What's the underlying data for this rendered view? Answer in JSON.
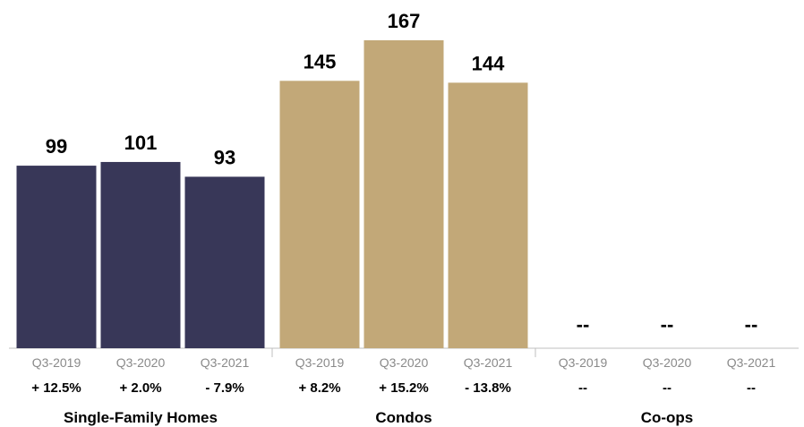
{
  "chart_data": {
    "type": "bar",
    "groups": [
      {
        "name": "Single-Family Homes",
        "color": "#383758",
        "bars": [
          {
            "period": "Q3-2019",
            "value": 99,
            "label": "99",
            "change": "+ 12.5%"
          },
          {
            "period": "Q3-2020",
            "value": 101,
            "label": "101",
            "change": "+ 2.0%"
          },
          {
            "period": "Q3-2021",
            "value": 93,
            "label": "93",
            "change": "- 7.9%"
          }
        ]
      },
      {
        "name": "Condos",
        "color": "#c2a878",
        "bars": [
          {
            "period": "Q3-2019",
            "value": 145,
            "label": "145",
            "change": "+ 8.2%"
          },
          {
            "period": "Q3-2020",
            "value": 167,
            "label": "167",
            "change": "+ 15.2%"
          },
          {
            "period": "Q3-2021",
            "value": 144,
            "label": "144",
            "change": "- 13.8%"
          }
        ]
      },
      {
        "name": "Co-ops",
        "color": "#c2a878",
        "bars": [
          {
            "period": "Q3-2019",
            "value": null,
            "label": "--",
            "change": "--"
          },
          {
            "period": "Q3-2020",
            "value": null,
            "label": "--",
            "change": "--"
          },
          {
            "period": "Q3-2021",
            "value": null,
            "label": "--",
            "change": "--"
          }
        ]
      }
    ],
    "axis_color": "#bfbfbf",
    "ylim": [
      0,
      167
    ],
    "grid": false,
    "legend": "none"
  }
}
